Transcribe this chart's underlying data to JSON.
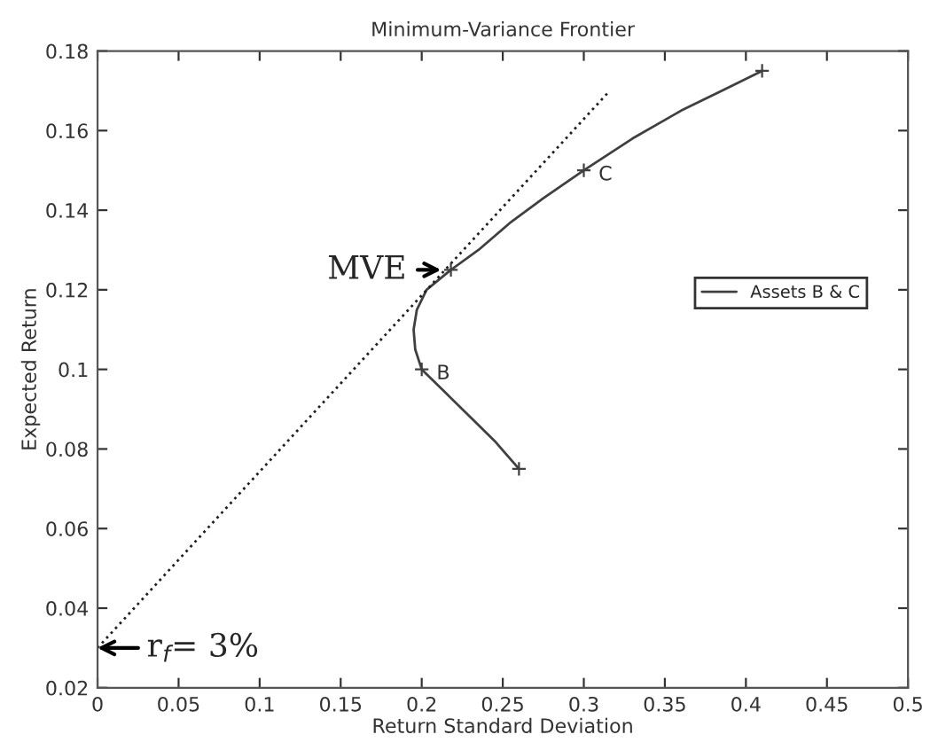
{
  "chart_data": {
    "type": "line",
    "title": "Minimum-Variance Frontier",
    "xlabel": "Return Standard Deviation",
    "ylabel": "Expected Return",
    "xlim": [
      0,
      0.5
    ],
    "xticks": [
      0,
      0.05,
      0.1,
      0.15,
      0.2,
      0.25,
      0.3,
      0.35,
      0.4,
      0.45,
      0.5
    ],
    "ylim": [
      0.02,
      0.18
    ],
    "yticks": [
      0.02,
      0.04,
      0.06,
      0.08,
      0.1,
      0.12,
      0.14,
      0.16,
      0.18
    ],
    "grid": false,
    "legend": "right",
    "series": [
      {
        "name": "Assets B & C",
        "color": "#404040",
        "marker": "none",
        "line_style": "solid",
        "x": [
          0.26,
          0.245,
          0.23,
          0.215,
          0.2,
          0.196,
          0.195,
          0.197,
          0.203,
          0.218,
          0.235,
          0.255,
          0.275,
          0.3,
          0.33,
          0.36,
          0.385,
          0.41
        ],
        "values": [
          0.075,
          0.082,
          0.088,
          0.094,
          0.1,
          0.105,
          0.11,
          0.115,
          0.12,
          0.125,
          0.13,
          0.137,
          0.143,
          0.15,
          0.158,
          0.165,
          0.17,
          0.175
        ]
      },
      {
        "type": "scatter",
        "color": "#404040",
        "marker": "cross",
        "x": [
          0.26,
          0.2,
          0.218,
          0.3,
          0.41
        ],
        "values": [
          0.075,
          0.1,
          0.125,
          0.15,
          0.175
        ]
      },
      {
        "color": "#202020",
        "marker": "none",
        "line_style": "dotted",
        "x": [
          0,
          0.316
        ],
        "values": [
          0.03,
          0.17
        ]
      }
    ],
    "annotations": [
      {
        "text": "B",
        "x": 0.2,
        "y": 0.1
      },
      {
        "text": "C",
        "x": 0.3,
        "y": 0.15
      },
      {
        "text": "MVE",
        "x": 0.218,
        "y": 0.125
      },
      {
        "text": "r$_{f}$= 3%",
        "x": 0,
        "y": 0.03
      }
    ]
  }
}
